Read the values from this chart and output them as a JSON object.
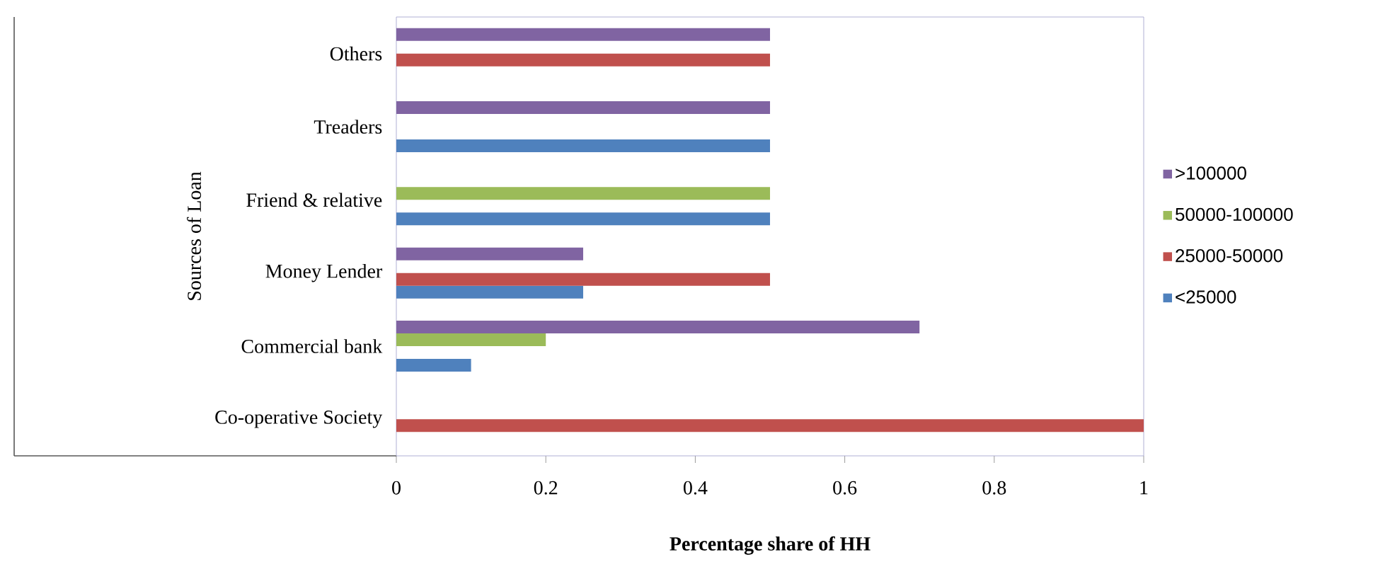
{
  "chart_data": {
    "type": "bar",
    "orientation": "horizontal",
    "xlabel": "Percentage share of HH",
    "ylabel": "Sources of Loan",
    "categories": [
      "Others",
      "Treaders",
      "Friend & relative",
      "Money Lender",
      "Commercial bank",
      "Co-operative Society"
    ],
    "series": [
      {
        "name": "<25000",
        "color": "#4f81bd",
        "values": [
          null,
          0.5,
          0.5,
          0.25,
          0.1,
          null
        ]
      },
      {
        "name": "25000-50000",
        "color": "#c0504d",
        "values": [
          0.5,
          null,
          null,
          0.5,
          null,
          1
        ]
      },
      {
        "name": "50000-100000",
        "color": "#9bbb59",
        "values": [
          null,
          null,
          0.5,
          null,
          0.2,
          null
        ]
      },
      {
        "name": ">100000",
        "color": "#8064a2",
        "values": [
          0.5,
          0.5,
          null,
          0.25,
          0.7,
          null
        ]
      }
    ],
    "xlim": [
      0,
      1
    ],
    "xticks": [
      0,
      0.2,
      0.4,
      0.6,
      0.8,
      1
    ],
    "grid": false,
    "legend": "right"
  }
}
